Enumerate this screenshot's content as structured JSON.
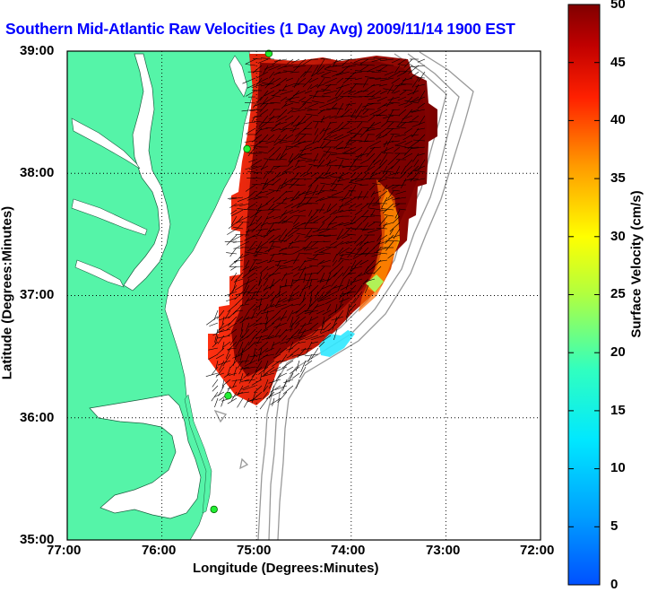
{
  "title": "Southern Mid-Atlantic Raw Velocities (1 Day Avg) 2009/11/14 1900 EST",
  "xlabel": "Longitude (Degrees:Minutes)",
  "ylabel": "Latitude (Degrees:Minutes)",
  "colorbar_label": "Surface Velocity (cm/s)",
  "x_ticks": [
    "77:00",
    "76:00",
    "75:00",
    "74:00",
    "73:00",
    "72:00"
  ],
  "y_ticks": [
    "39:00",
    "38:00",
    "37:00",
    "36:00",
    "35:00"
  ],
  "colorbar_ticks": [
    "50",
    "45",
    "40",
    "35",
    "30",
    "25",
    "20",
    "15",
    "10",
    "5",
    "0"
  ],
  "colors": {
    "land": "#55f4a8",
    "title": "#0000ff",
    "bathymetry": "#999999"
  },
  "chart_data": {
    "type": "heatmap",
    "title": "Southern Mid-Atlantic Raw Velocities (1 Day Avg) 2009/11/14 1900 EST",
    "xlabel": "Longitude (Degrees:Minutes)",
    "ylabel": "Latitude (Degrees:Minutes)",
    "xlim": [
      -77,
      -72
    ],
    "ylim": [
      35,
      39
    ],
    "color_scale": {
      "label": "Surface Velocity (cm/s)",
      "min": 0,
      "max": 50,
      "colormap": "jet"
    },
    "grid": true,
    "stations": [
      {
        "lon": -74.87,
        "lat": 38.98
      },
      {
        "lon": -75.1,
        "lat": 38.2
      },
      {
        "lon": -75.3,
        "lat": 36.18
      },
      {
        "lon": -75.45,
        "lat": 35.25
      }
    ]
  }
}
